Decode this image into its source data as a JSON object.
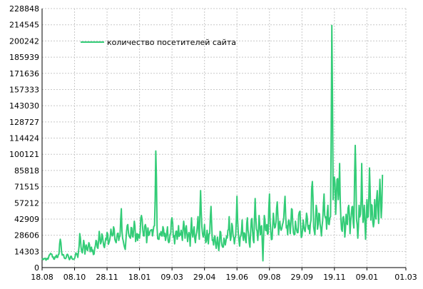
{
  "chart_data": {
    "type": "line",
    "title": "",
    "xlabel": "",
    "ylabel": "",
    "ylim": [
      0,
      228848
    ],
    "y_ticks": [
      "228848",
      "214545",
      "200242",
      "185939",
      "171636",
      "157333",
      "143030",
      "128727",
      "114424",
      "100121",
      "85818",
      "71515",
      "57212",
      "42909",
      "28606",
      "14303",
      "0"
    ],
    "y_tick_values": [
      228848,
      214545,
      200242,
      185939,
      171636,
      157333,
      143030,
      128727,
      114424,
      100121,
      85818,
      71515,
      57212,
      42909,
      28606,
      14303,
      0
    ],
    "x_ticks": [
      "18.08",
      "08.10",
      "28.11",
      "18.01",
      "09.03",
      "29.04",
      "19.06",
      "09.08",
      "29.09",
      "19.11",
      "09.01",
      "01.03"
    ],
    "x_tick_index": [
      0,
      50,
      100,
      150,
      200,
      250,
      300,
      350,
      400,
      450,
      500,
      560
    ],
    "x_count": 561,
    "grid": true,
    "legend_position": "top-left",
    "series": [
      {
        "name": "количество посетителей сайта",
        "color": "#33cc77",
        "anchors": [
          [
            0,
            7000
          ],
          [
            3,
            8000
          ],
          [
            6,
            6500
          ],
          [
            10,
            9000
          ],
          [
            14,
            12000
          ],
          [
            18,
            7500
          ],
          [
            22,
            11000
          ],
          [
            24,
            9000
          ],
          [
            26,
            12000
          ],
          [
            28,
            25000
          ],
          [
            30,
            14000
          ],
          [
            35,
            8000
          ],
          [
            40,
            11000
          ],
          [
            42,
            7000
          ],
          [
            45,
            10000
          ],
          [
            48,
            7500
          ],
          [
            50,
            8000
          ],
          [
            52,
            13000
          ],
          [
            55,
            9000
          ],
          [
            57,
            19000
          ],
          [
            58,
            30000
          ],
          [
            60,
            18000
          ],
          [
            62,
            13000
          ],
          [
            64,
            24000
          ],
          [
            66,
            12000
          ],
          [
            68,
            20000
          ],
          [
            70,
            15000
          ],
          [
            72,
            22000
          ],
          [
            74,
            14000
          ],
          [
            76,
            18000
          ],
          [
            80,
            12000
          ],
          [
            83,
            24000
          ],
          [
            86,
            17000
          ],
          [
            88,
            32000
          ],
          [
            90,
            21000
          ],
          [
            93,
            28000
          ],
          [
            95,
            19000
          ],
          [
            98,
            26000
          ],
          [
            100,
            31000
          ],
          [
            103,
            22000
          ],
          [
            106,
            34000
          ],
          [
            108,
            28000
          ],
          [
            110,
            36000
          ],
          [
            112,
            25000
          ],
          [
            114,
            22000
          ],
          [
            116,
            30000
          ],
          [
            118,
            24000
          ],
          [
            120,
            28000
          ],
          [
            122,
            52000
          ],
          [
            124,
            26000
          ],
          [
            126,
            20000
          ],
          [
            128,
            16000
          ],
          [
            130,
            32000
          ],
          [
            132,
            38000
          ],
          [
            134,
            28000
          ],
          [
            136,
            26000
          ],
          [
            138,
            35000
          ],
          [
            140,
            27000
          ],
          [
            142,
            41000
          ],
          [
            144,
            23000
          ],
          [
            146,
            30000
          ],
          [
            150,
            26000
          ],
          [
            153,
            46000
          ],
          [
            155,
            33000
          ],
          [
            157,
            28000
          ],
          [
            159,
            38000
          ],
          [
            161,
            22000
          ],
          [
            163,
            35000
          ],
          [
            165,
            29000
          ],
          [
            167,
            33000
          ],
          [
            170,
            28000
          ],
          [
            173,
            37000
          ],
          [
            175,
            103000
          ],
          [
            177,
            35000
          ],
          [
            179,
            25000
          ],
          [
            181,
            30000
          ],
          [
            184,
            28000
          ],
          [
            187,
            34000
          ],
          [
            190,
            24000
          ],
          [
            193,
            36000
          ],
          [
            195,
            22000
          ],
          [
            198,
            30000
          ],
          [
            200,
            44000
          ],
          [
            202,
            27000
          ],
          [
            204,
            21000
          ],
          [
            206,
            32000
          ],
          [
            208,
            25000
          ],
          [
            210,
            37000
          ],
          [
            212,
            30000
          ],
          [
            214,
            33000
          ],
          [
            216,
            24000
          ],
          [
            218,
            41000
          ],
          [
            220,
            26000
          ],
          [
            222,
            37000
          ],
          [
            224,
            23000
          ],
          [
            226,
            31000
          ],
          [
            228,
            19000
          ],
          [
            230,
            44000
          ],
          [
            232,
            27000
          ],
          [
            234,
            36000
          ],
          [
            236,
            22000
          ],
          [
            238,
            31000
          ],
          [
            240,
            45000
          ],
          [
            242,
            25000
          ],
          [
            244,
            68000
          ],
          [
            246,
            36000
          ],
          [
            248,
            27000
          ],
          [
            250,
            38000
          ],
          [
            252,
            22000
          ],
          [
            254,
            33000
          ],
          [
            256,
            21000
          ],
          [
            258,
            30000
          ],
          [
            260,
            54000
          ],
          [
            262,
            24000
          ],
          [
            264,
            20000
          ],
          [
            266,
            28000
          ],
          [
            268,
            17000
          ],
          [
            270,
            27000
          ],
          [
            272,
            15000
          ],
          [
            274,
            32000
          ],
          [
            276,
            23000
          ],
          [
            278,
            18000
          ],
          [
            280,
            26000
          ],
          [
            282,
            20000
          ],
          [
            284,
            28000
          ],
          [
            286,
            33000
          ],
          [
            288,
            45000
          ],
          [
            290,
            24000
          ],
          [
            292,
            39000
          ],
          [
            294,
            28000
          ],
          [
            296,
            21000
          ],
          [
            298,
            28000
          ],
          [
            300,
            63000
          ],
          [
            302,
            31000
          ],
          [
            304,
            19000
          ],
          [
            306,
            28000
          ],
          [
            308,
            42000
          ],
          [
            310,
            24000
          ],
          [
            312,
            30000
          ],
          [
            314,
            22000
          ],
          [
            316,
            44000
          ],
          [
            318,
            29000
          ],
          [
            320,
            18000
          ],
          [
            322,
            42000
          ],
          [
            324,
            32000
          ],
          [
            326,
            22000
          ],
          [
            328,
            61000
          ],
          [
            330,
            34000
          ],
          [
            332,
            24000
          ],
          [
            334,
            46000
          ],
          [
            336,
            29000
          ],
          [
            338,
            37000
          ],
          [
            340,
            6000
          ],
          [
            342,
            46000
          ],
          [
            344,
            33000
          ],
          [
            346,
            38000
          ],
          [
            348,
            30000
          ],
          [
            350,
            65000
          ],
          [
            352,
            32000
          ],
          [
            354,
            25000
          ],
          [
            356,
            48000
          ],
          [
            358,
            35000
          ],
          [
            360,
            40000
          ],
          [
            362,
            58000
          ],
          [
            364,
            29000
          ],
          [
            366,
            41000
          ],
          [
            368,
            33000
          ],
          [
            370,
            38000
          ],
          [
            372,
            44000
          ],
          [
            374,
            63000
          ],
          [
            376,
            35000
          ],
          [
            378,
            29000
          ],
          [
            380,
            42000
          ],
          [
            382,
            30000
          ],
          [
            384,
            52000
          ],
          [
            386,
            38000
          ],
          [
            388,
            29000
          ],
          [
            390,
            41000
          ],
          [
            392,
            33000
          ],
          [
            394,
            31000
          ],
          [
            396,
            49000
          ],
          [
            398,
            36000
          ],
          [
            400,
            28000
          ],
          [
            402,
            42000
          ],
          [
            404,
            33000
          ],
          [
            406,
            39000
          ],
          [
            408,
            45000
          ],
          [
            410,
            34000
          ],
          [
            412,
            30000
          ],
          [
            414,
            42000
          ],
          [
            416,
            76000
          ],
          [
            418,
            36000
          ],
          [
            420,
            29000
          ],
          [
            422,
            55000
          ],
          [
            424,
            34000
          ],
          [
            426,
            48000
          ],
          [
            428,
            38000
          ],
          [
            430,
            28000
          ],
          [
            432,
            42000
          ],
          [
            434,
            65000
          ],
          [
            436,
            44000
          ],
          [
            438,
            34000
          ],
          [
            440,
            55000
          ],
          [
            442,
            38000
          ],
          [
            444,
            45000
          ],
          [
            446,
            214000
          ],
          [
            448,
            60000
          ],
          [
            450,
            80000
          ],
          [
            452,
            47000
          ],
          [
            454,
            78000
          ],
          [
            456,
            60000
          ],
          [
            458,
            92000
          ],
          [
            460,
            43000
          ],
          [
            462,
            32000
          ],
          [
            464,
            45000
          ],
          [
            466,
            27000
          ],
          [
            468,
            47000
          ],
          [
            470,
            38000
          ],
          [
            472,
            55000
          ],
          [
            474,
            30000
          ],
          [
            476,
            46000
          ],
          [
            478,
            54000
          ],
          [
            480,
            35000
          ],
          [
            482,
            108000
          ],
          [
            484,
            43000
          ],
          [
            486,
            26000
          ],
          [
            488,
            55000
          ],
          [
            490,
            47000
          ],
          [
            492,
            92000
          ],
          [
            494,
            40000
          ],
          [
            496,
            55000
          ],
          [
            498,
            25000
          ],
          [
            500,
            60000
          ],
          [
            502,
            45000
          ],
          [
            504,
            88000
          ],
          [
            506,
            42000
          ],
          [
            508,
            55000
          ],
          [
            510,
            36000
          ],
          [
            512,
            60000
          ],
          [
            514,
            43000
          ],
          [
            516,
            68000
          ],
          [
            518,
            39000
          ],
          [
            520,
            78000
          ],
          [
            522,
            44000
          ],
          [
            524,
            82000
          ]
        ]
      }
    ]
  }
}
